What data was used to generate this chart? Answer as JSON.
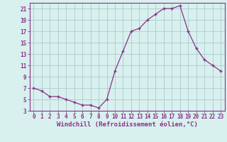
{
  "x": [
    0,
    1,
    2,
    3,
    4,
    5,
    6,
    7,
    8,
    9,
    10,
    11,
    12,
    13,
    14,
    15,
    16,
    17,
    18,
    19,
    20,
    21,
    22,
    23
  ],
  "y": [
    7,
    6.5,
    5.5,
    5.5,
    5,
    4.5,
    4,
    4,
    3.5,
    5,
    10,
    13.5,
    17,
    17.5,
    19,
    20,
    21,
    21,
    21.5,
    17,
    14,
    12,
    11,
    10
  ],
  "line_color": "#883388",
  "marker": "+",
  "bg_color": "#d8f0ee",
  "grid_color": "#aaccd0",
  "axis_color": "#883388",
  "tick_color": "#883388",
  "xlabel": "Windchill (Refroidissement éolien,°C)",
  "xlabel_fontsize": 6.5,
  "xlim": [
    -0.5,
    23.5
  ],
  "ylim": [
    3,
    22
  ],
  "yticks": [
    3,
    5,
    7,
    9,
    11,
    13,
    15,
    17,
    19,
    21
  ],
  "xticks": [
    0,
    1,
    2,
    3,
    4,
    5,
    6,
    7,
    8,
    9,
    10,
    11,
    12,
    13,
    14,
    15,
    16,
    17,
    18,
    19,
    20,
    21,
    22,
    23
  ]
}
